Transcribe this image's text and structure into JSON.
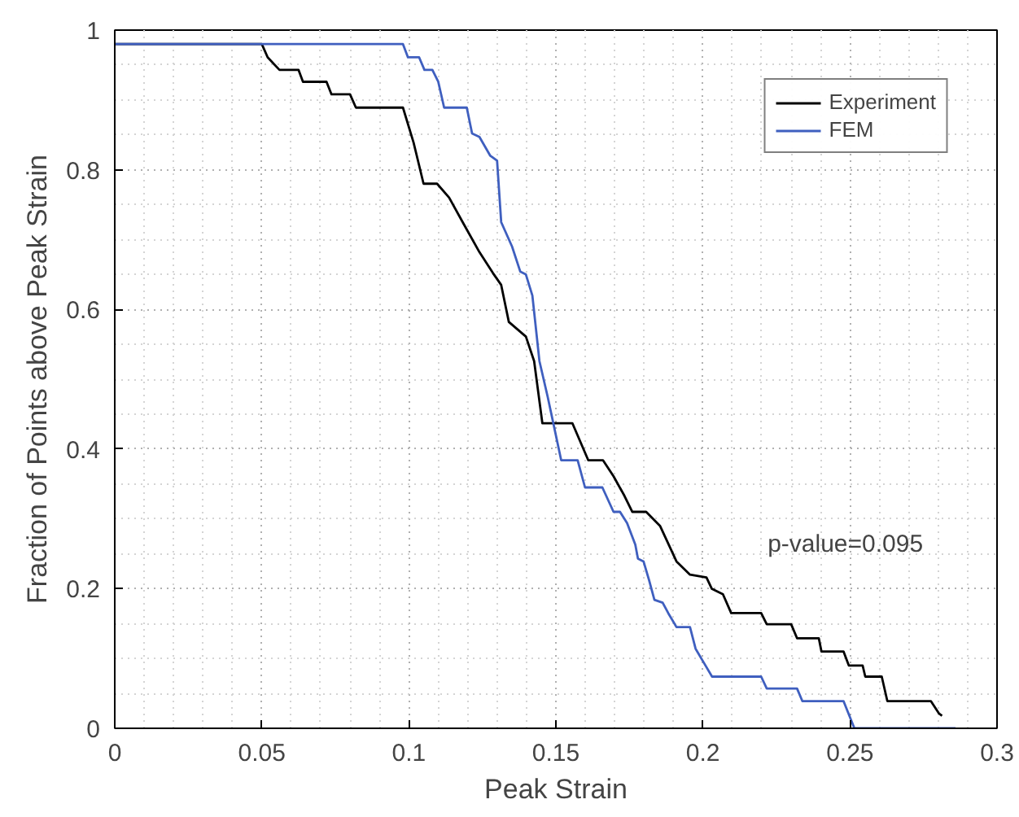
{
  "chart_data": {
    "type": "line",
    "xlabel": "Peak Strain",
    "ylabel": "Fraction of Points above Peak Strain",
    "xlim": [
      0,
      0.3
    ],
    "ylim": [
      0,
      1
    ],
    "xticks": [
      0,
      0.05,
      0.1,
      0.15,
      0.2,
      0.25,
      0.3
    ],
    "yticks": [
      0,
      0.2,
      0.4,
      0.6,
      0.8,
      1
    ],
    "grid": true,
    "legend": "top right",
    "line_style": "solid",
    "annotations": [
      "p-value=0.095"
    ],
    "series": [
      {
        "name": "Experiment",
        "color": "#000000",
        "x": [
          0,
          0.05,
          0.052,
          0.056,
          0.0625,
          0.064,
          0.072,
          0.0737,
          0.08,
          0.082,
          0.098,
          0.1016,
          0.105,
          0.1096,
          0.1137,
          0.1183,
          0.124,
          0.1286,
          0.1314,
          0.134,
          0.1398,
          0.1426,
          0.1454,
          0.1556,
          0.161,
          0.166,
          0.1696,
          0.1733,
          0.176,
          0.1807,
          0.1854,
          0.191,
          0.1956,
          0.2012,
          0.203,
          0.2068,
          0.2096,
          0.2198,
          0.2217,
          0.23,
          0.232,
          0.2394,
          0.2403,
          0.2478,
          0.2496,
          0.2543,
          0.2552,
          0.2608,
          0.2627,
          0.2775,
          0.2803,
          0.2813
        ],
        "values": [
          0.98,
          0.98,
          0.961,
          0.943,
          0.943,
          0.926,
          0.926,
          0.908,
          0.908,
          0.889,
          0.889,
          0.839,
          0.78,
          0.78,
          0.76,
          0.725,
          0.682,
          0.652,
          0.635,
          0.582,
          0.561,
          0.526,
          0.437,
          0.437,
          0.384,
          0.384,
          0.361,
          0.333,
          0.31,
          0.31,
          0.29,
          0.239,
          0.22,
          0.216,
          0.2,
          0.192,
          0.165,
          0.165,
          0.149,
          0.149,
          0.129,
          0.129,
          0.11,
          0.11,
          0.09,
          0.09,
          0.074,
          0.074,
          0.039,
          0.039,
          0.021,
          0.018
        ]
      },
      {
        "name": "FEM",
        "color": "#3f5fbf",
        "x": [
          0,
          0.098,
          0.0997,
          0.1035,
          0.1053,
          0.108,
          0.11,
          0.112,
          0.1197,
          0.1215,
          0.124,
          0.1277,
          0.13,
          0.1314,
          0.1351,
          0.1379,
          0.1398,
          0.142,
          0.1444,
          0.1472,
          0.1518,
          0.1574,
          0.1599,
          0.1658,
          0.1696,
          0.1718,
          0.1742,
          0.177,
          0.1779,
          0.1798,
          0.1817,
          0.1835,
          0.1863,
          0.1882,
          0.191,
          0.1956,
          0.1975,
          0.2003,
          0.2031,
          0.2198,
          0.2217,
          0.232,
          0.2338,
          0.2478,
          0.2515,
          0.2859
        ],
        "values": [
          0.98,
          0.98,
          0.961,
          0.961,
          0.943,
          0.943,
          0.926,
          0.889,
          0.889,
          0.852,
          0.847,
          0.82,
          0.813,
          0.725,
          0.69,
          0.654,
          0.65,
          0.62,
          0.526,
          0.475,
          0.384,
          0.384,
          0.345,
          0.345,
          0.31,
          0.31,
          0.294,
          0.263,
          0.243,
          0.239,
          0.212,
          0.184,
          0.18,
          0.165,
          0.145,
          0.145,
          0.114,
          0.094,
          0.074,
          0.074,
          0.057,
          0.057,
          0.039,
          0.039,
          0,
          0
        ]
      }
    ]
  }
}
